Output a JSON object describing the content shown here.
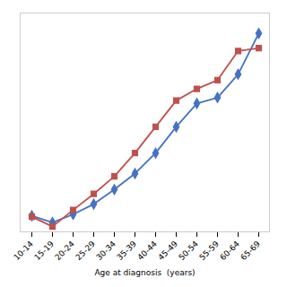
{
  "chart_data": {
    "type": "line",
    "xlabel": "Age at diagnosis  (years)",
    "categories": [
      "10-14",
      "15-19",
      "20-24",
      "25-29",
      "30-34",
      "35-39",
      "40-44",
      "45-49",
      "50-54",
      "55-59",
      "60-64",
      "65-69"
    ],
    "series": [
      {
        "color": "#4472C4",
        "marker": "diamond",
        "values": [
          5.5,
          3.2,
          6.0,
          9.5,
          14.5,
          20.0,
          27.0,
          36.0,
          44.0,
          46.0,
          54.0,
          68.0
        ]
      },
      {
        "color": "#C0504D",
        "marker": "square",
        "values": [
          5.2,
          1.8,
          7.5,
          13.0,
          19.0,
          27.0,
          36.0,
          45.0,
          49.0,
          52.0,
          62.0,
          63.0
        ]
      }
    ],
    "ylim": [
      0,
      75
    ],
    "tick_labels": "x",
    "grid": false
  }
}
